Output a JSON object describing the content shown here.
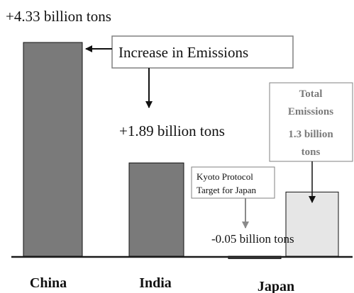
{
  "chart_data": {
    "type": "bar",
    "unit": "billion tons",
    "categories": [
      "China",
      "India",
      "Japan"
    ],
    "increase_values": [
      4.33,
      1.89,
      -0.05
    ],
    "total_emissions": {
      "category": "Japan",
      "value": 1.3
    },
    "value_labels": [
      "+4.33 billion tons",
      "+1.89 billion tons",
      "-0.05 billion tons"
    ],
    "callouts": {
      "increase": "Increase in Emissions",
      "kyoto": [
        "Kyoto Protocol",
        "Target for Japan"
      ],
      "total": [
        "Total",
        "Emissions",
        "1.3 billion",
        "tons"
      ]
    },
    "colors": {
      "increase_bar": "#7a7a7a",
      "total_bar": "#e6e6e6",
      "japan_increase_bar": "#6e6e6e",
      "baseline": "#1a1a1a",
      "callout_border": "#808080",
      "callout_text": "#7a7a7a",
      "kyoto_arrow": "#8a8a8a"
    },
    "ylim": [
      -0.05,
      4.33
    ]
  }
}
